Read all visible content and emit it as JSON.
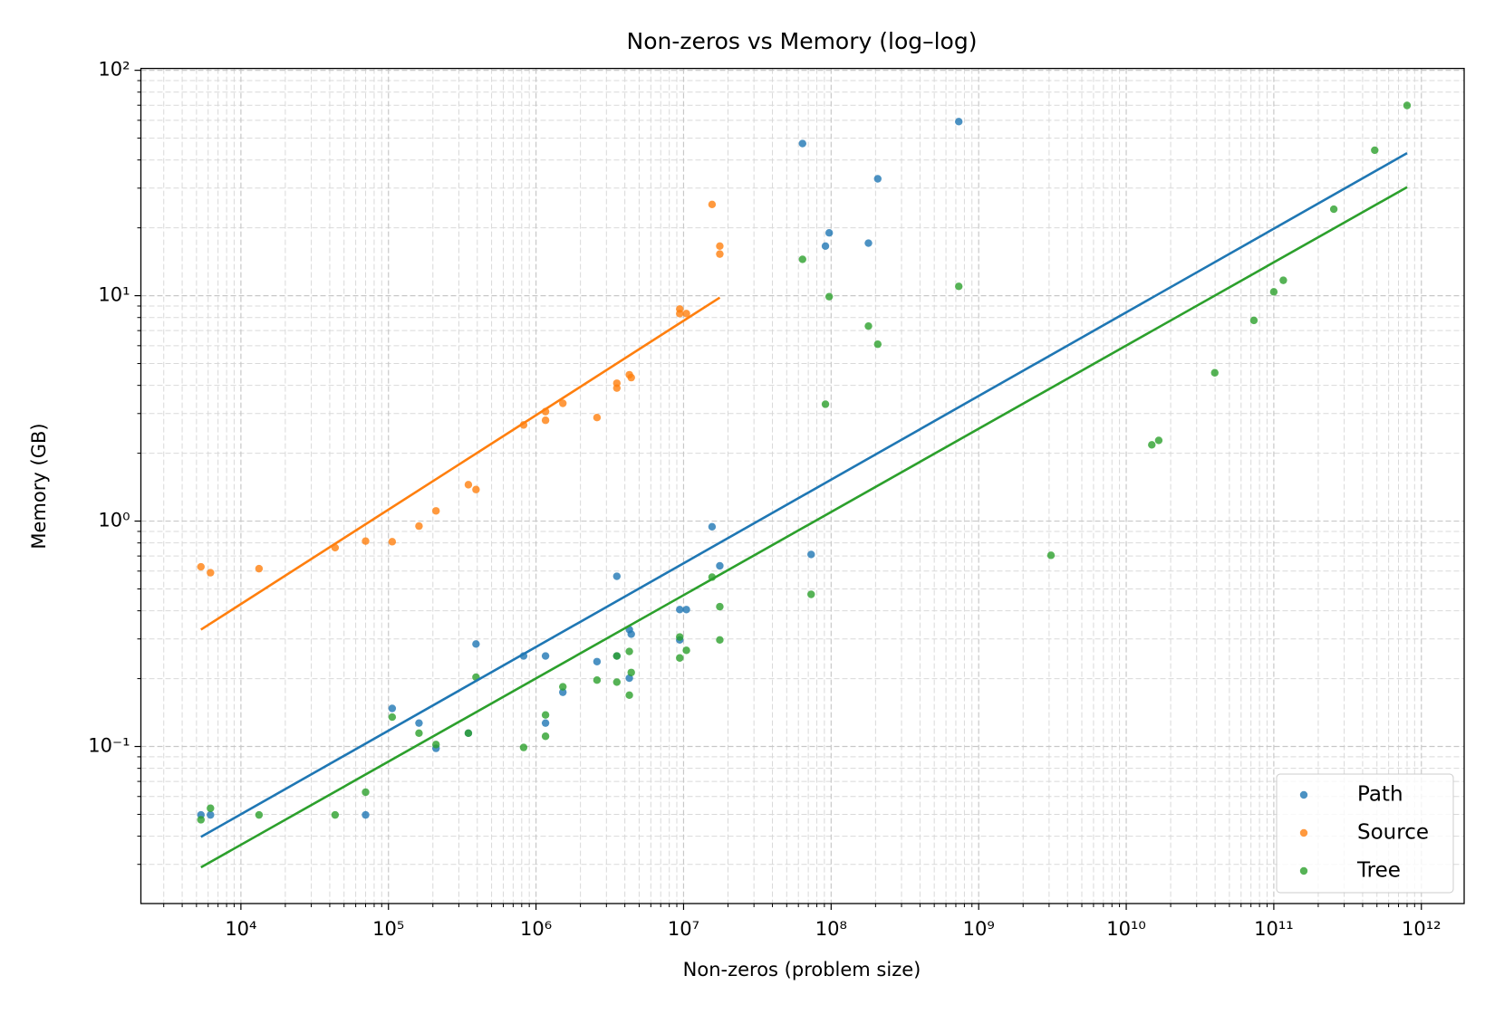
{
  "chart_data": {
    "type": "scatter",
    "title": "Non-zeros vs Memory (log–log)",
    "x_label": "Non-zeros (problem size)",
    "y_label": "Memory (GB)",
    "xscale": "log",
    "yscale": "log",
    "grid": true,
    "minor_grid": true,
    "legend": "lower right",
    "xlim": [
      2100,
      1950000000000
    ],
    "ylim": [
      0.0201,
      101.9
    ],
    "xticks": [
      {
        "value": 10000,
        "label": "10⁴"
      },
      {
        "value": 100000,
        "label": "10⁵"
      },
      {
        "value": 1000000,
        "label": "10⁶"
      },
      {
        "value": 10000000,
        "label": "10⁷"
      },
      {
        "value": 100000000,
        "label": "10⁸"
      },
      {
        "value": 1000000000,
        "label": "10⁹"
      },
      {
        "value": 10000000000,
        "label": "10¹⁰"
      },
      {
        "value": 100000000000,
        "label": "10¹¹"
      },
      {
        "value": 1000000000000,
        "label": "10¹²"
      }
    ],
    "yticks": [
      {
        "value": 0.1,
        "label": "10⁻¹"
      },
      {
        "value": 1,
        "label": "10⁰"
      },
      {
        "value": 10,
        "label": "10¹"
      },
      {
        "value": 100,
        "label": "10²"
      }
    ],
    "series": [
      {
        "name": "Path",
        "color": "#1f77b4",
        "x": [
          5360,
          6220,
          70000,
          106000,
          161000,
          210000,
          348000,
          392000,
          824000,
          1160000,
          1160000,
          1520000,
          2590000,
          3530000,
          3530000,
          4290000,
          4290000,
          4420000,
          9420000,
          9420000,
          10450000,
          15600000,
          17600000,
          64000000,
          73200000,
          91500000,
          97000000,
          179000000,
          207000000,
          733000000
        ],
        "values": [
          0.0497,
          0.0497,
          0.0497,
          0.1475,
          0.127,
          0.0981,
          0.1146,
          0.285,
          0.252,
          0.252,
          0.127,
          0.174,
          0.238,
          0.569,
          0.252,
          0.201,
          0.33,
          0.315,
          0.405,
          0.297,
          0.405,
          0.944,
          0.633,
          47.3,
          0.711,
          16.6,
          19.0,
          17.1,
          33.0,
          59.2
        ],
        "fit": {
          "x": [
            5360,
            800000000000
          ],
          "y": [
            0.0397,
            42.9
          ]
        }
      },
      {
        "name": "Source",
        "color": "#ff7f0e",
        "x": [
          5360,
          6220,
          13270,
          43500,
          70000,
          106000,
          161000,
          210000,
          348000,
          392000,
          824000,
          1160000,
          1160000,
          1520000,
          2590000,
          3530000,
          3530000,
          4290000,
          4420000,
          9420000,
          9420000,
          10450000,
          15600000,
          17600000,
          17600000
        ],
        "values": [
          0.627,
          0.59,
          0.615,
          0.762,
          0.815,
          0.81,
          0.95,
          1.11,
          1.45,
          1.38,
          2.67,
          3.06,
          2.8,
          3.33,
          2.88,
          4.09,
          3.89,
          4.46,
          4.33,
          8.73,
          8.33,
          8.33,
          25.4,
          16.6,
          15.3
        ],
        "fit": {
          "x": [
            5360,
            17600000
          ],
          "y": [
            0.33,
            9.81
          ]
        }
      },
      {
        "name": "Tree",
        "color": "#2ca02c",
        "x": [
          5360,
          6220,
          13270,
          43500,
          70000,
          106000,
          161000,
          210000,
          348000,
          392000,
          824000,
          1160000,
          1160000,
          1520000,
          2590000,
          3530000,
          3530000,
          4290000,
          4290000,
          4420000,
          9420000,
          9420000,
          10450000,
          15600000,
          17600000,
          17600000,
          64000000,
          73200000,
          91500000,
          97000000,
          179000000,
          207000000,
          733000000,
          3090000000,
          14900000000,
          16600000000,
          39800000000,
          73300000000,
          100000000000,
          116000000000,
          255000000000,
          483000000000,
          800000000000
        ],
        "values": [
          0.0473,
          0.0532,
          0.0497,
          0.0497,
          0.0627,
          0.135,
          0.1146,
          0.102,
          0.1146,
          0.203,
          0.099,
          0.138,
          0.111,
          0.184,
          0.197,
          0.252,
          0.193,
          0.264,
          0.169,
          0.213,
          0.306,
          0.247,
          0.267,
          0.564,
          0.417,
          0.297,
          14.5,
          0.473,
          3.3,
          9.9,
          7.33,
          6.09,
          11.0,
          0.705,
          2.18,
          2.28,
          4.55,
          7.77,
          10.4,
          11.7,
          24.2,
          44.2,
          69.8
        ],
        "fit": {
          "x": [
            5360,
            800000000000
          ],
          "y": [
            0.0291,
            30.3
          ]
        }
      }
    ]
  }
}
